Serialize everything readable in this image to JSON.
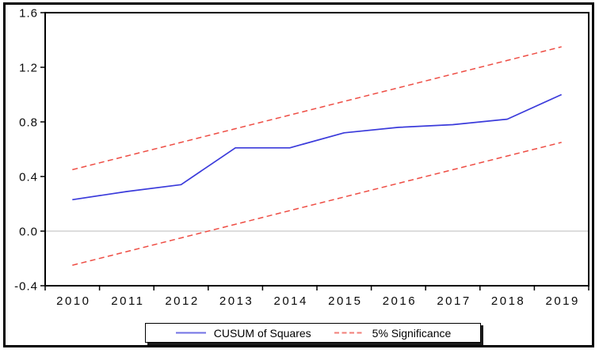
{
  "chart_data": {
    "type": "line",
    "title": "",
    "xlabel": "",
    "ylabel": "",
    "x": [
      2010,
      2011,
      2012,
      2013,
      2014,
      2015,
      2016,
      2017,
      2018,
      2019
    ],
    "xtick_labels": [
      "2010",
      "2011",
      "2012",
      "2013",
      "2014",
      "2015",
      "2016",
      "2017",
      "2018",
      "2019"
    ],
    "yticks": [
      "1.6",
      "1.2",
      "0.8",
      "0.4",
      "0.0",
      "-0.4"
    ],
    "ylim": [
      -0.4,
      1.6
    ],
    "grid": "horizontal-zero-line-only",
    "zero_line": 0.0,
    "legend_position": "bottom-center",
    "series": [
      {
        "name": "CUSUM of Squares",
        "style": "solid",
        "color": "#3b3bdb",
        "values": [
          0.23,
          0.29,
          0.34,
          0.61,
          0.61,
          0.72,
          0.76,
          0.78,
          0.82,
          1.0
        ]
      },
      {
        "name": "5% Significance upper bound",
        "style": "dashed",
        "color": "#ee4d44",
        "values": [
          0.45,
          0.55,
          0.65,
          0.75,
          0.85,
          0.95,
          1.05,
          1.15,
          1.25,
          1.35
        ]
      },
      {
        "name": "5% Significance lower bound",
        "style": "dashed",
        "color": "#ee4d44",
        "values": [
          -0.25,
          -0.15,
          -0.05,
          0.05,
          0.15,
          0.25,
          0.35,
          0.45,
          0.55,
          0.65
        ]
      }
    ],
    "legend": [
      {
        "label": "CUSUM of Squares",
        "style": "solid",
        "color": "#3b3bdb"
      },
      {
        "label": "5% Significance",
        "style": "dashed",
        "color": "#ee4d44"
      }
    ],
    "colors": {
      "axis": "#000000",
      "zero_line": "#bbbbbb",
      "background": "#ffffff"
    }
  }
}
